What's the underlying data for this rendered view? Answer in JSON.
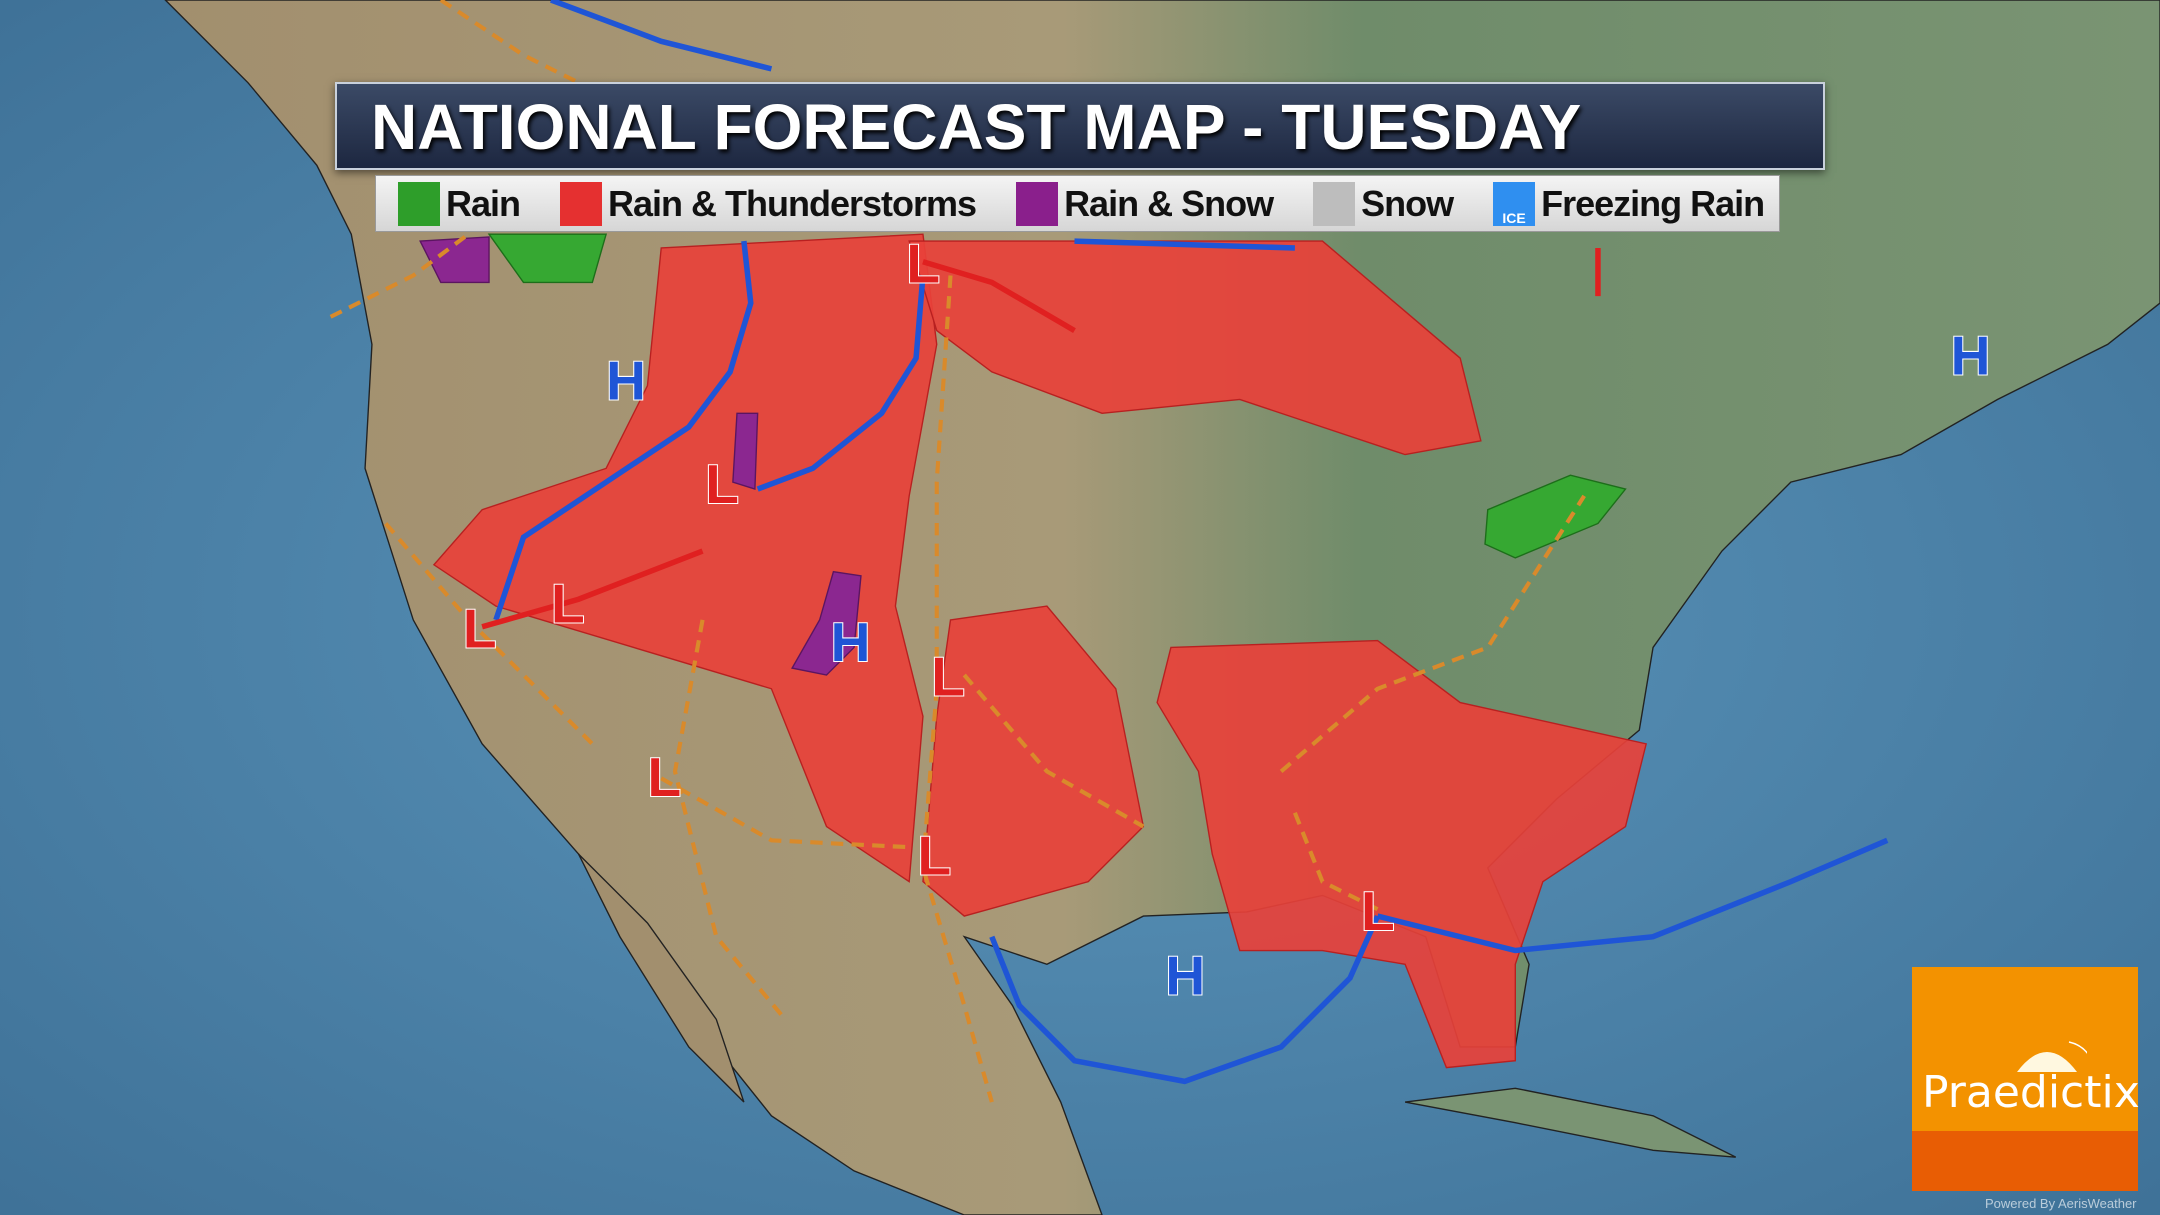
{
  "header": {
    "title": "NATIONAL FORECAST MAP - TUESDAY"
  },
  "legend": [
    {
      "label": "Rain",
      "color": "#2e9e2a",
      "icon": "raindrop-icon"
    },
    {
      "label": "Rain & Thunderstorms",
      "color": "#e53030",
      "icon": "lightning-icon"
    },
    {
      "label": "Rain & Snow",
      "color": "#8a1f8c",
      "icon": "snowflake-icon"
    },
    {
      "label": "Snow",
      "color": "#bdbdbd",
      "icon": "snowflake-icon"
    },
    {
      "label": "Freezing Rain",
      "color": "#2f8ff0",
      "icon": "ice-icon",
      "badge": "ICE"
    }
  ],
  "pressure": {
    "high": "H",
    "low": "L"
  },
  "colors": {
    "ocean": "#4f86ad",
    "land": "#a39477",
    "thunder": "#e8413a",
    "rain": "#36a832",
    "mix": "#8b2790",
    "cold_front": "#1f55d6",
    "warm_front": "#e02020",
    "trough": "#d98a2b"
  },
  "logo": {
    "brand": "Praedictix",
    "powered_by": "Powered By AerisWeather"
  }
}
